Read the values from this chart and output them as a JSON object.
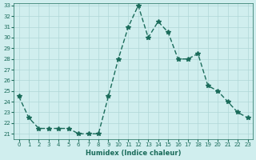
{
  "x": [
    0,
    1,
    2,
    3,
    4,
    5,
    6,
    7,
    8,
    9,
    10,
    11,
    12,
    13,
    14,
    15,
    16,
    17,
    18,
    19,
    20,
    21,
    22,
    23
  ],
  "y": [
    24.5,
    22.5,
    21.5,
    21.5,
    21.5,
    21.5,
    21.0,
    21.0,
    21.0,
    24.5,
    28.0,
    31.0,
    33.0,
    30.0,
    31.5,
    30.5,
    28.0,
    28.0,
    28.5,
    25.5,
    25.0,
    24.0,
    23.0,
    22.5
  ],
  "xlabel": "Humidex (Indice chaleur)",
  "ylabel": "",
  "ylim": [
    21,
    33
  ],
  "xlim": [
    -0.5,
    23.5
  ],
  "yticks": [
    21,
    22,
    23,
    24,
    25,
    26,
    27,
    28,
    29,
    30,
    31,
    32,
    33
  ],
  "xticks": [
    0,
    1,
    2,
    3,
    4,
    5,
    6,
    7,
    8,
    9,
    10,
    11,
    12,
    13,
    14,
    15,
    16,
    17,
    18,
    19,
    20,
    21,
    22,
    23
  ],
  "line_color": "#1a6b5a",
  "marker": "*",
  "bg_color": "#d0eeee",
  "grid_color": "#b0d8d8",
  "font_color": "#1a6b5a"
}
